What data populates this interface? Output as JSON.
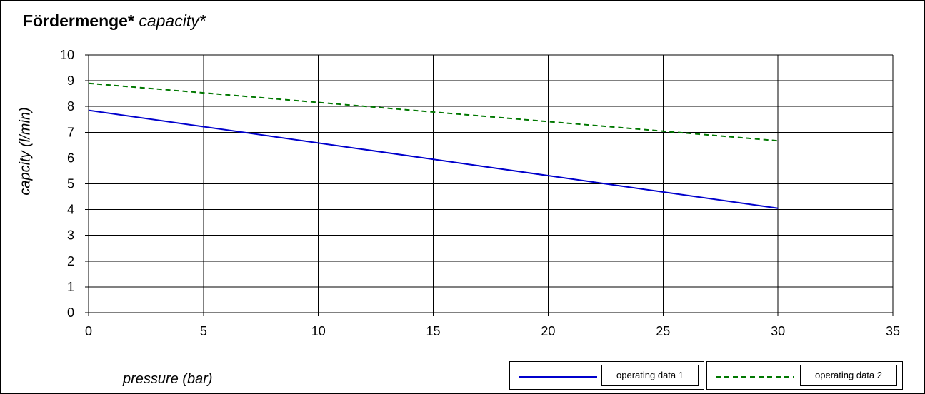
{
  "chart_data": {
    "type": "line",
    "title": "Fördermenge*",
    "title_translation": "capacity*",
    "xlabel": "pressure (bar)",
    "ylabel": "capcity (l/min)",
    "xlim": [
      0,
      35
    ],
    "ylim": [
      0,
      10
    ],
    "x_ticks": [
      0,
      5,
      10,
      15,
      20,
      25,
      30,
      35
    ],
    "y_ticks": [
      0,
      1,
      2,
      3,
      4,
      5,
      6,
      7,
      8,
      9,
      10
    ],
    "grid": true,
    "legend_position": "bottom-right",
    "series": [
      {
        "name": "operating data 1",
        "color": "#0000cc",
        "style": "solid",
        "x": [
          0,
          30
        ],
        "y": [
          7.85,
          4.05
        ]
      },
      {
        "name": "operating data 2",
        "color": "#007700",
        "style": "dashed",
        "x": [
          0,
          30
        ],
        "y": [
          8.9,
          6.67
        ]
      }
    ]
  }
}
